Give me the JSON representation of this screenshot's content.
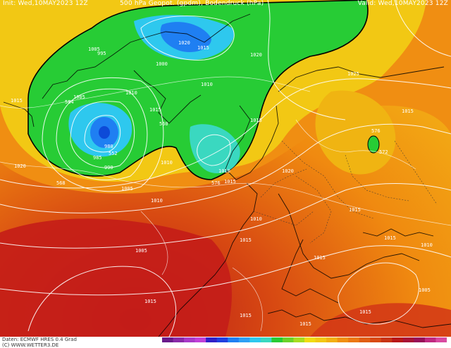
{
  "header": {
    "init": "Init: Wed,10MAY2023 12Z",
    "title": "500 hPa Geopot. (gpdm), Bodendruck (hPa)",
    "valid": "Valid: Wed,10MAY2023 12Z"
  },
  "footer": {
    "source": "Daten: ECMWF HRES 0.4 Grad",
    "credit": "(C) WWW.WETTER3.DE"
  },
  "colors": {
    "cold": "#1f7ff2",
    "cool": "#2ec8ee",
    "mid": "#27cc35",
    "warm": "#f0dc10",
    "hot": "#f09010",
    "very_hot": "#d84a12"
  },
  "contour_labels": [
    "1015",
    "1005",
    "995",
    "1010",
    "1000",
    "980",
    "985",
    "990",
    "1020",
    "1005",
    "1010",
    "1015",
    "1020",
    "1010",
    "1015",
    "1020",
    "1025",
    "1015",
    "1015",
    "1010",
    "1015",
    "1020",
    "1015",
    "1015",
    "1010",
    "1005",
    "1015",
    "1015",
    "1005",
    "1010",
    "1005",
    "1015",
    "1015",
    "1015",
    "1015",
    "1010",
    "576",
    "568",
    "552",
    "560",
    "584",
    "576",
    "572"
  ]
}
